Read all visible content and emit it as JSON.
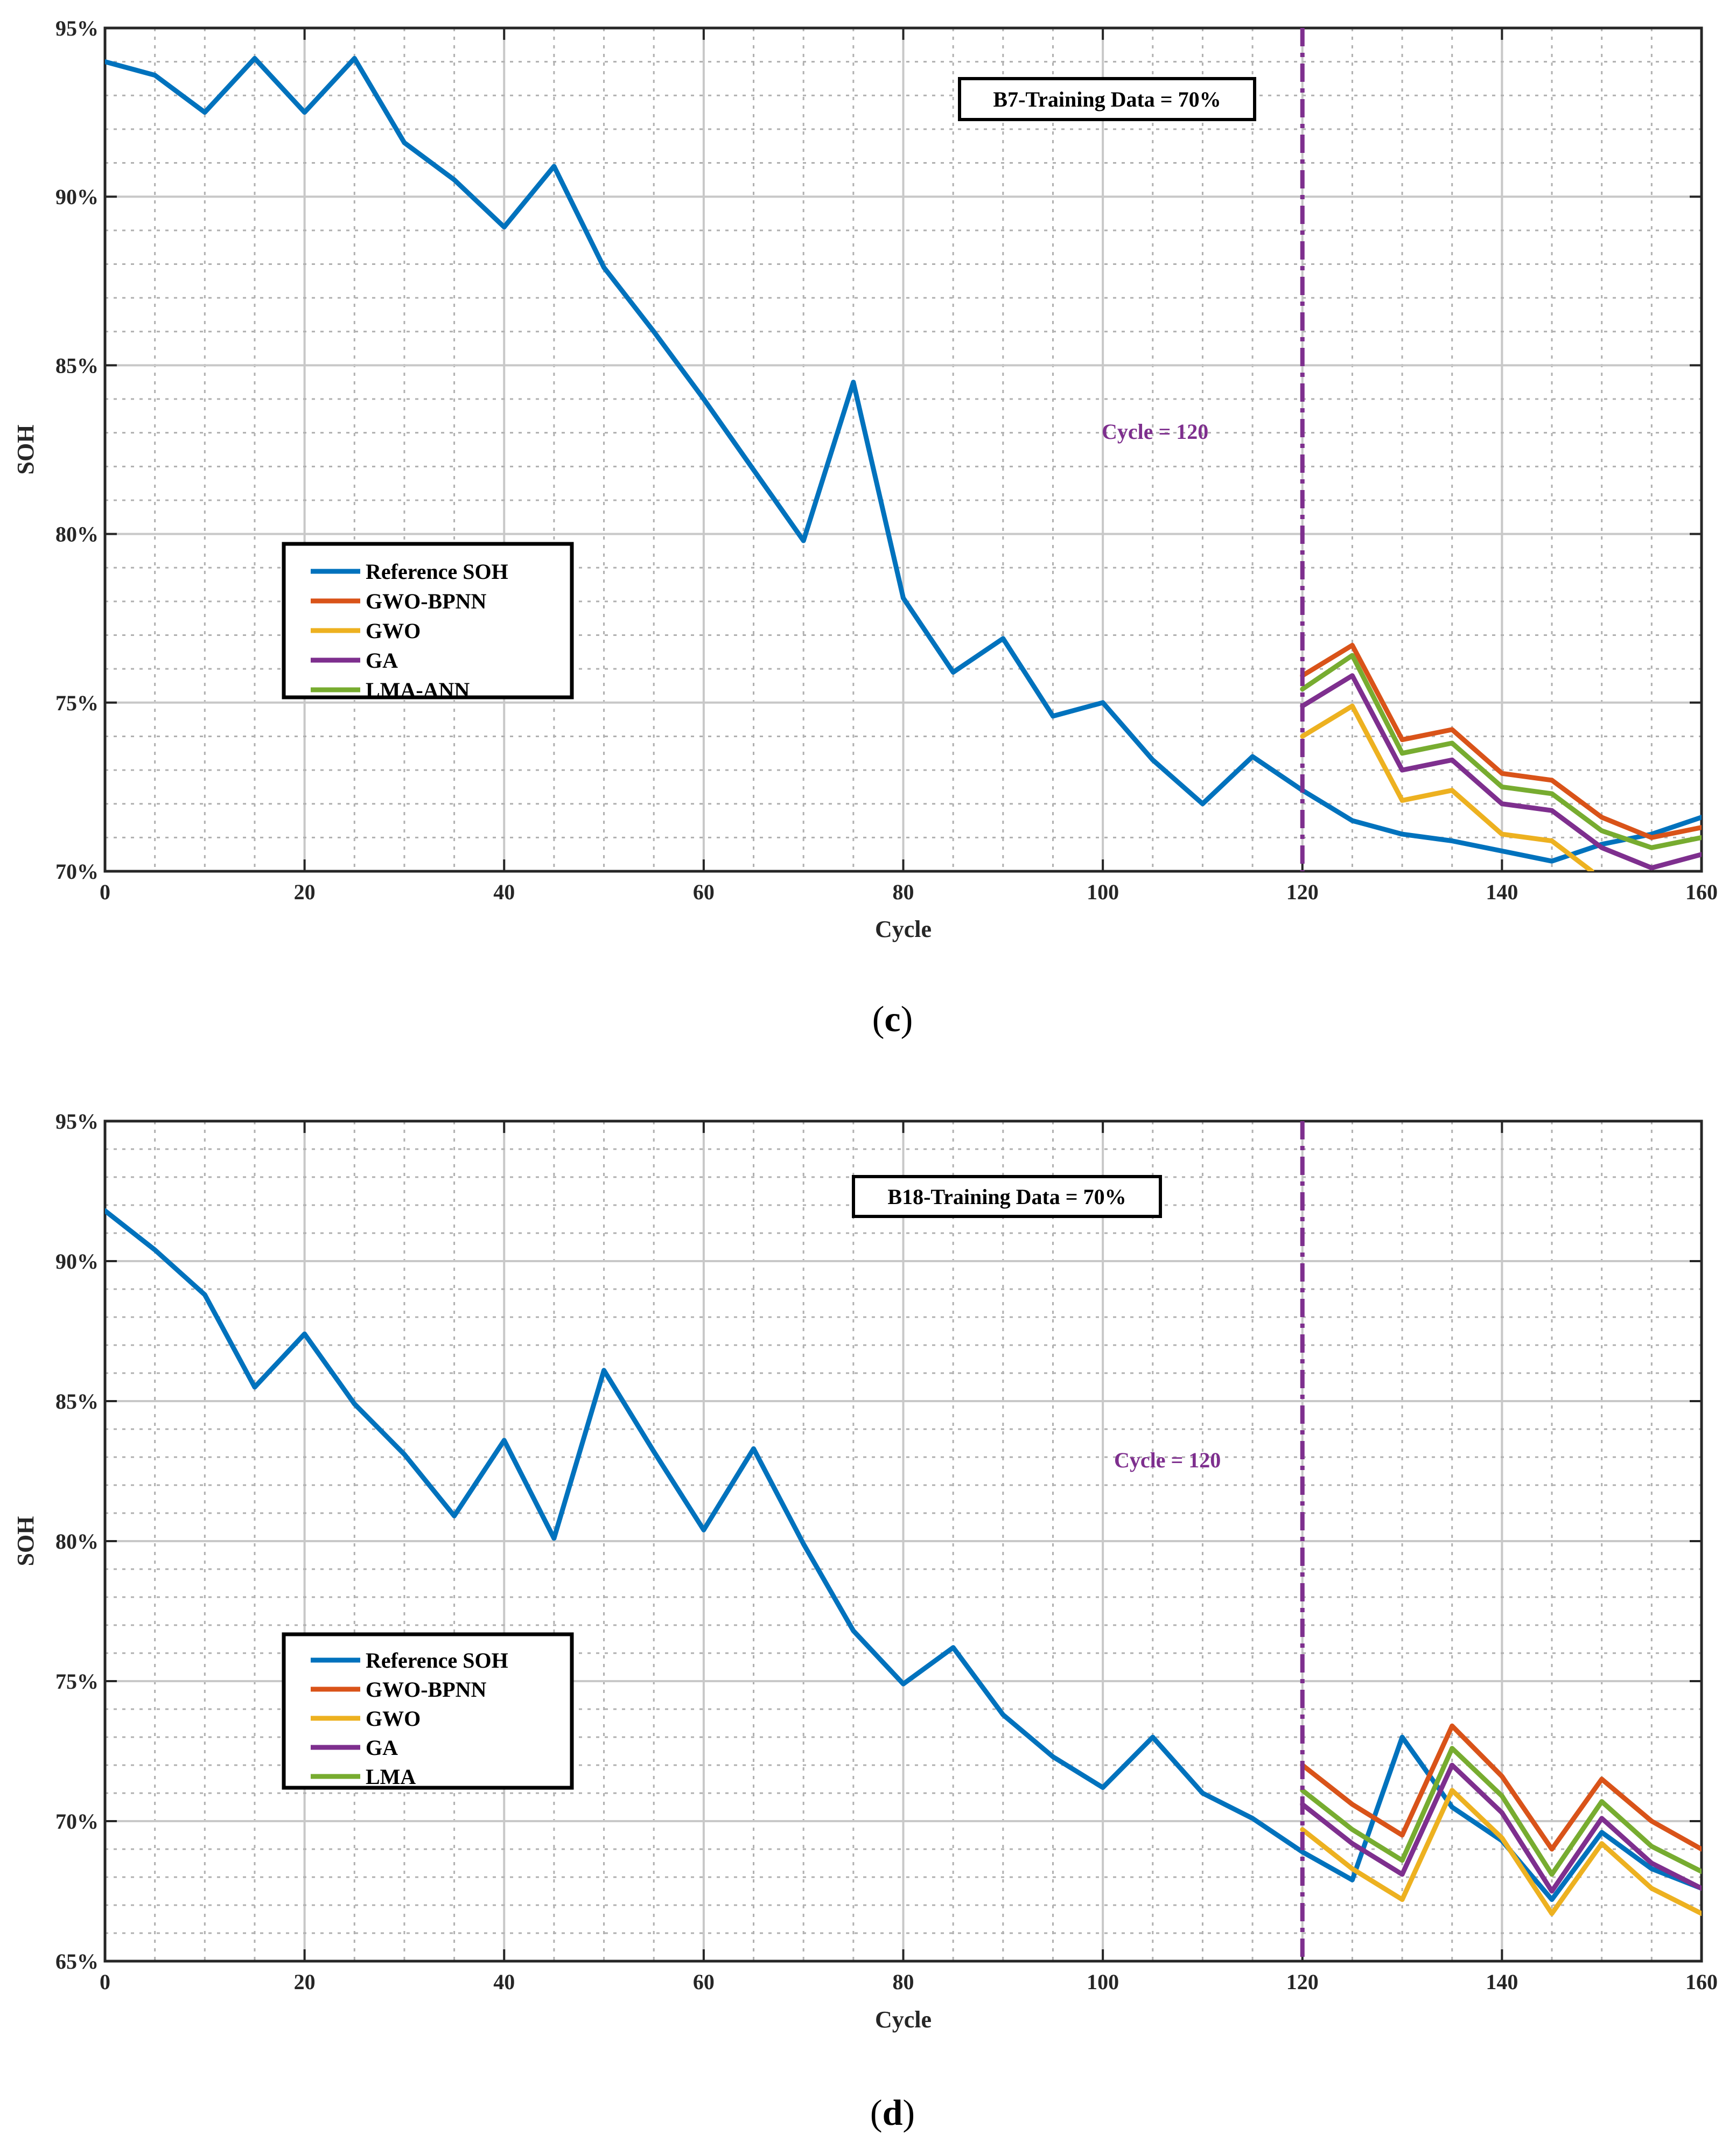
{
  "chart_data": [
    {
      "type": "line",
      "panel_label": "(c)",
      "panel_letter": "c",
      "box_label": "B7-Training Data = 70%",
      "xlabel": "Cycle",
      "ylabel": "SOH",
      "xlim": [
        0,
        160
      ],
      "ylim": [
        70,
        95
      ],
      "x_ticks": [
        0,
        20,
        40,
        60,
        80,
        100,
        120,
        140,
        160
      ],
      "y_ticks": [
        70,
        75,
        80,
        85,
        90,
        95
      ],
      "y_tick_labels": [
        "70%",
        "75%",
        "80%",
        "85%",
        "90%",
        "95%"
      ],
      "grid": true,
      "vline": {
        "x": 120,
        "label": "Cycle = 120",
        "color": "#7e2f8e"
      },
      "legend_position": "center-left",
      "series": [
        {
          "name": "Reference SOH",
          "color": "#0072bd",
          "x": [
            0,
            5,
            10,
            15,
            20,
            25,
            30,
            35,
            40,
            45,
            50,
            55,
            60,
            65,
            70,
            75,
            80,
            85,
            90,
            95,
            100,
            105,
            110,
            115,
            120,
            125,
            130,
            135,
            140,
            145,
            150,
            155,
            160
          ],
          "values": [
            94.0,
            93.6,
            92.5,
            94.1,
            92.5,
            94.1,
            91.6,
            90.5,
            89.1,
            90.9,
            87.9,
            86.0,
            84.0,
            81.9,
            79.8,
            84.5,
            78.1,
            75.9,
            76.9,
            74.6,
            75.0,
            73.3,
            72.0,
            73.4,
            72.4,
            71.5,
            71.1,
            70.9,
            70.6,
            70.3,
            70.8,
            71.1,
            71.6
          ]
        },
        {
          "name": "GWO-BPNN",
          "color": "#d95319",
          "x": [
            120,
            125,
            130,
            135,
            140,
            145,
            150,
            155,
            160
          ],
          "values": [
            75.8,
            76.7,
            73.9,
            74.2,
            72.9,
            72.7,
            71.6,
            71.0,
            71.3
          ]
        },
        {
          "name": "GWO",
          "color": "#edb120",
          "x": [
            120,
            125,
            130,
            135,
            140,
            145,
            149
          ],
          "values": [
            74.0,
            74.9,
            72.1,
            72.4,
            71.1,
            70.9,
            70.0
          ]
        },
        {
          "name": "GA",
          "color": "#7e2f8e",
          "x": [
            120,
            125,
            130,
            135,
            140,
            145,
            150,
            155,
            160
          ],
          "values": [
            74.9,
            75.8,
            73.0,
            73.3,
            72.0,
            71.8,
            70.7,
            70.1,
            70.5
          ]
        },
        {
          "name": "LMA-ANN",
          "color": "#77ac30",
          "x": [
            120,
            125,
            130,
            135,
            140,
            145,
            150,
            155,
            160
          ],
          "values": [
            75.4,
            76.4,
            73.5,
            73.8,
            72.5,
            72.3,
            71.2,
            70.7,
            71.0
          ]
        }
      ]
    },
    {
      "type": "line",
      "panel_label": "(d)",
      "panel_letter": "d",
      "box_label": "B18-Training Data = 70%",
      "xlabel": "Cycle",
      "ylabel": "SOH",
      "xlim": [
        0,
        160
      ],
      "ylim": [
        65,
        95
      ],
      "x_ticks": [
        0,
        20,
        40,
        60,
        80,
        100,
        120,
        140,
        160
      ],
      "y_ticks": [
        65,
        70,
        75,
        80,
        85,
        90,
        95
      ],
      "y_tick_labels": [
        "65%",
        "70%",
        "75%",
        "80%",
        "85%",
        "90%",
        "95%"
      ],
      "grid": true,
      "vline": {
        "x": 120,
        "label": "Cycle = 120",
        "color": "#7e2f8e"
      },
      "legend_position": "lower-left",
      "series": [
        {
          "name": "Reference SOH",
          "color": "#0072bd",
          "x": [
            0,
            5,
            10,
            15,
            20,
            25,
            30,
            35,
            40,
            45,
            50,
            55,
            60,
            65,
            70,
            75,
            80,
            85,
            90,
            95,
            100,
            105,
            110,
            115,
            120,
            125,
            130,
            135,
            140,
            145,
            150,
            155,
            160
          ],
          "values": [
            91.8,
            90.4,
            88.8,
            85.5,
            87.4,
            84.9,
            83.1,
            80.9,
            83.6,
            80.1,
            86.1,
            83.2,
            80.4,
            83.3,
            79.9,
            76.8,
            74.9,
            76.2,
            73.8,
            72.3,
            71.2,
            73.0,
            71.0,
            70.1,
            68.9,
            67.9,
            73.0,
            70.5,
            69.3,
            67.2,
            69.6,
            68.3,
            67.6
          ]
        },
        {
          "name": "GWO-BPNN",
          "color": "#d95319",
          "x": [
            120,
            125,
            130,
            135,
            140,
            145,
            150,
            155,
            160
          ],
          "values": [
            72.0,
            70.6,
            69.5,
            73.4,
            71.6,
            69.0,
            71.5,
            70.0,
            69.0
          ]
        },
        {
          "name": "GWO",
          "color": "#edb120",
          "x": [
            120,
            125,
            130,
            135,
            140,
            145,
            150,
            155,
            160
          ],
          "values": [
            69.7,
            68.3,
            67.2,
            71.1,
            69.4,
            66.7,
            69.2,
            67.6,
            66.7
          ]
        },
        {
          "name": "GA",
          "color": "#7e2f8e",
          "x": [
            120,
            125,
            130,
            135,
            140,
            145,
            150,
            155,
            160
          ],
          "values": [
            70.6,
            69.2,
            68.1,
            72.0,
            70.3,
            67.5,
            70.1,
            68.5,
            67.6
          ]
        },
        {
          "name": "LMA",
          "color": "#77ac30",
          "x": [
            120,
            125,
            130,
            135,
            140,
            145,
            150,
            155,
            160
          ],
          "values": [
            71.1,
            69.7,
            68.6,
            72.6,
            70.9,
            68.1,
            70.7,
            69.1,
            68.2
          ]
        }
      ]
    }
  ]
}
